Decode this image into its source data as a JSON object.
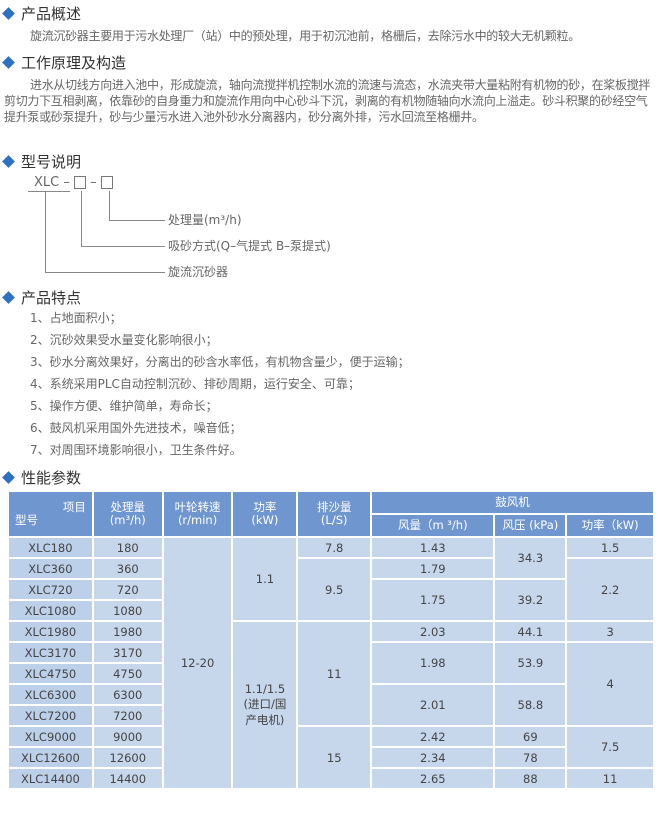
{
  "colors": {
    "accent": "#2e6fc4",
    "header_bg": "#6f96cf",
    "cell_bg": "#c6d7ec"
  },
  "sections": {
    "overview": {
      "title": "产品概述",
      "text": "旋流沉砂器主要用于污水处理厂（站）中的预处理，用于初沉池前，格栅后，去除污水中的较大无机颗粒。"
    },
    "principle": {
      "title": "工作原理及构造",
      "text": "进水从切线方向进入池中，形成旋流，轴向流搅拌机控制水流的流速与流态，水流夹带大量粘附有机物的砂，在桨板搅拌剪切力下互相剥离，依靠砂的自身重力和旋流作用向中心砂斗下沉，剥离的有机物随轴向水流向上溢走。砂斗积聚的砂经空气提升泵或砂泵提升，砂与少量污水进入池外砂水分离器内，砂分离外排，污水回流至格栅井。"
    },
    "model": {
      "title": "型号说明",
      "prefix": "XLC",
      "dash": "–",
      "label_capacity": "处理量(m³/h)",
      "label_suction": "吸砂方式(Q–气提式  B–泵提式)",
      "label_name": "旋流沉砂器"
    },
    "features": {
      "title": "产品特点",
      "items": [
        "1、占地面积小；",
        "2、沉砂效果受水量变化影响很小；",
        "3、砂水分离效果好，分离出的砂含水率低，有机物含量少，便于运输；",
        "4、系统采用PLC自动控制沉砂、排砂周期，运行安全、可靠；",
        "5、操作方便、维护简单，寿命长；",
        "6、鼓风机采用国外先进技术，噪音低；",
        "7、对周围环境影响很小，卫生条件好。"
      ]
    },
    "params": {
      "title": "性能参数"
    }
  },
  "table": {
    "h_item": "项目",
    "h_model": "型号",
    "h_cap": "处理量",
    "h_cap_unit": "(m³/h)",
    "h_speed": "叶轮转速",
    "h_speed_unit": "(r/min)",
    "h_power": "功率",
    "h_power_unit": "(kW)",
    "h_sand": "排沙量",
    "h_sand_unit": "(L/S)",
    "h_blower": "鼓风机",
    "h_air": "风量（m ³/h)",
    "h_press": "风压 (kPa)",
    "h_bpower": "功率（kW)",
    "models": [
      "XLC180",
      "XLC360",
      "XLC720",
      "XLC1080",
      "XLC1980",
      "XLC3170",
      "XLC4750",
      "XLC6300",
      "XLC7200",
      "XLC9000",
      "XLC12600",
      "XLC14400"
    ],
    "capacity": [
      "180",
      "360",
      "720",
      "1080",
      "1980",
      "3170",
      "4750",
      "6300",
      "7200",
      "9000",
      "12600",
      "14400"
    ],
    "speed": "12-20",
    "power": [
      "1.1",
      "1.1/1.5",
      "(进口/国",
      "产电机)"
    ],
    "sand": [
      "7.8",
      "9.5",
      "11",
      "15"
    ],
    "air": [
      "1.43",
      "1.79",
      "1.75",
      "2.03",
      "1.98",
      "2.01",
      "2.42",
      "2.34",
      "2.65"
    ],
    "pressure": [
      "34.3",
      "39.2",
      "44.1",
      "53.9",
      "58.8",
      "69",
      "78",
      "88"
    ],
    "bpower": [
      "1.5",
      "2.2",
      "3",
      "4",
      "7.5",
      "11"
    ]
  }
}
